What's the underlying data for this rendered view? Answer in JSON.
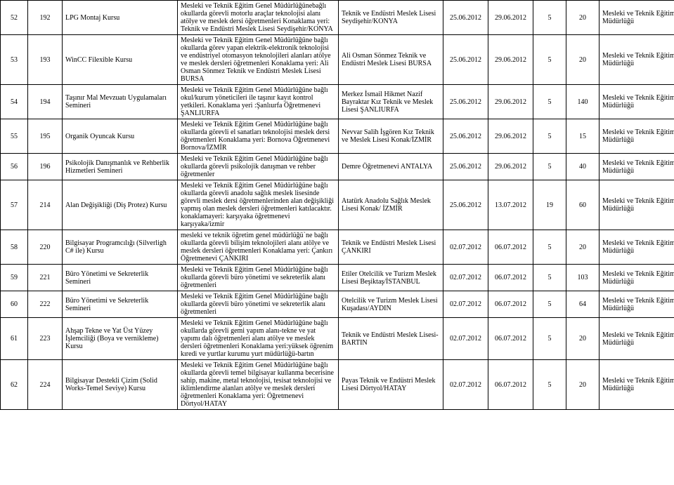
{
  "org_label": "Mesleki ve Teknik Eğitim Genel Müdürlüğü",
  "rows": [
    {
      "seq": "52",
      "num": "192",
      "name": "LPG Montaj Kursu",
      "desc": "Mesleki ve Teknik Eğitim Genel Müdürlüğünebağlı okullarda görevli motorlu araçlar teknolojisi alanı atölye ve meslek dersi öğretmenleri\nKonaklama yeri: Teknik ve Endüstri Meslek Lisesi Seydişehir/KONYA",
      "loc": "Teknik ve Endüstri Meslek Lisesi Seydişehir/KONYA",
      "d1": "25.06.2012",
      "d2": "29.06.2012",
      "n1": "5",
      "n2": "20"
    },
    {
      "seq": "53",
      "num": "193",
      "name": "WinCC Filexible Kursu",
      "desc": "Mesleki ve Teknik Eğitim Genel Müdürlüğüne bağlı okullarda görev yapan elektrik-elektronik teknolojisi ve endüstriyel otomasyon teknolojileri alanları atölye ve meslek dersleri öğretmenleri\nKonaklama yeri: Ali Osman Sönmez Teknik ve Endüstri Meslek Lisesi BURSA",
      "loc": "Ali Osman Sönmez Teknik ve Endüstri Meslek Lisesi BURSA",
      "d1": "25.06.2012",
      "d2": "29.06.2012",
      "n1": "5",
      "n2": "20"
    },
    {
      "seq": "54",
      "num": "194",
      "name": "Taşınır Mal Mevzuatı Uygulamaları Semineri",
      "desc": "Mesleki ve Teknik Eğitim Genel Müdürlüğüne bağlı okul/kurum yöneticileri ile taşınır kayıt kontrol yetkileri.\nKonaklama yeri :Şanlıurfa Öğretmenevi ŞANLIURFA",
      "loc": "Merkez İsmail Hikmet Nazif Bayraktar Kız Teknik ve Meslek Lisesi ŞANLIURFA",
      "d1": "25.06.2012",
      "d2": "29.06.2012",
      "n1": "5",
      "n2": "140"
    },
    {
      "seq": "55",
      "num": "195",
      "name": "Organik Oyuncak Kursu",
      "desc": "Mesleki ve Teknik Eğitim Genel Müdürlüğüne bağlı okullarda görevli el sanatları teknolojisi meslek dersi öğretmenleri\nKonaklama yeri: Bornova Öğretmenevi Bornova/İZMİR",
      "loc": "Nevvar Salih İşgören Kız Teknik ve Meslek Lisesi Konak/İZMİR",
      "d1": "25.06.2012",
      "d2": "29.06.2012",
      "n1": "5",
      "n2": "15"
    },
    {
      "seq": "56",
      "num": "196",
      "name": "Psikolojik Danışmanlık ve Rehberlik Hizmetleri Semineri",
      "desc": "Mesleki ve Teknik Eğitim Genel Müdürlüğüne bağlı okullarda görevli psikolojik danışman ve rehber öğretmenler",
      "loc": "Demre Öğretmenevi ANTALYA",
      "d1": "25.06.2012",
      "d2": "29.06.2012",
      "n1": "5",
      "n2": "40"
    },
    {
      "seq": "57",
      "num": "214",
      "name": "Alan Değişikliği (Diş Protez) Kursu",
      "desc": "Mesleki ve Teknik Eğitim Genel Müdürlüğüne bağlı okullarda görevli anadolu sağlık meslek lisesinde görevli meslek dersi öğretmenlerinden alan değişikliği yapmış olan meslek dersleri öğretmenleri katılacaktır. konaklamayeri: karşıyaka öğretmenevi karşıyaka/izmir",
      "loc": "Atatürk Anadolu Sağlık Meslek Lisesi Konak/ İZMİR",
      "d1": "25.06.2012",
      "d2": "13.07.2012",
      "n1": "19",
      "n2": "60"
    },
    {
      "seq": "58",
      "num": "220",
      "name": "Bilgisayar Programcılığı (Silverligh C# ile) Kursu",
      "desc": "mesleki ve teknik öğretim genel müdürlüğü`ne bağlı okullarda görevli bilişim teknolojileri alanı atölye ve meslek dersleri öğretmenleri\nKonaklama yeri: Çankırı Öğretmenevi ÇANKIRI",
      "loc": "Teknik ve Endüstri Meslek Lisesi ÇANKIRI",
      "d1": "02.07.2012",
      "d2": "06.07.2012",
      "n1": "5",
      "n2": "20"
    },
    {
      "seq": "59",
      "num": "221",
      "name": "Büro Yönetimi ve Sekreterlik Semineri",
      "desc": "Mesleki ve Teknik Eğitim Genel Müdürlüğüne bağlı okullarda görevli büro yönetimi ve sekreterlik alanı öğretmenleri",
      "loc": "Etiler Otelcilik ve Turizm Meslek Lisesi Beşiktaş/İSTANBUL",
      "d1": "02.07.2012",
      "d2": "06.07.2012",
      "n1": "5",
      "n2": "103"
    },
    {
      "seq": "60",
      "num": "222",
      "name": "Büro Yönetimi ve Sekreterlik Semineri",
      "desc": "Mesleki ve Teknik Eğitim Genel Müdürlüğüne bağlı okullarda görevli büro yönetimi ve sekreterlik alanı öğretmenleri",
      "loc": "Otelcilik ve Turizm Meslek Lisesi Kuşadası/AYDIN",
      "d1": "02.07.2012",
      "d2": "06.07.2012",
      "n1": "5",
      "n2": "64"
    },
    {
      "seq": "61",
      "num": "223",
      "name": "Ahşap Tekne ve Yat Üst Yüzey İşlemciliği (Boya ve vernikleme) Kursu",
      "desc": "Mesleki ve Teknik Eğitim Genel Müdürlüğüne bağlı okullarda görevli gemi yapım alanı-tekne ve yat yapımı dalı öğretmenleri alanı atölye ve meslek dersleri öğretmenleri\nKonaklama yeri:yüksek öğrenim kıredi ve yurtlar kurumu yurt müdürlüğü-bartın",
      "loc": "Teknik ve Endüstri Meslek Lisesi-BARTIN",
      "d1": "02.07.2012",
      "d2": "06.07.2012",
      "n1": "5",
      "n2": "20"
    },
    {
      "seq": "62",
      "num": "224",
      "name": "Bilgisayar Destekli Çizim (Solid Works-Temel Seviye) Kursu",
      "desc": "Mesleki ve Teknik Eğitim Genel Müdürlüğüne bağlı okullarda görevli temel bilgisayar kullanma becerisine sahip, makine, metal teknolojisi, tesisat teknolojisi ve iklimlendirme alanları atölye ve meslek dersleri öğretmenleri\nKonaklama yeri: Öğretmenevi Dörtyol/HATAY",
      "loc": "Payas Teknik ve Endüstri Meslek Lisesi Dörtyol/HATAY",
      "d1": "02.07.2012",
      "d2": "06.07.2012",
      "n1": "5",
      "n2": "20"
    }
  ]
}
